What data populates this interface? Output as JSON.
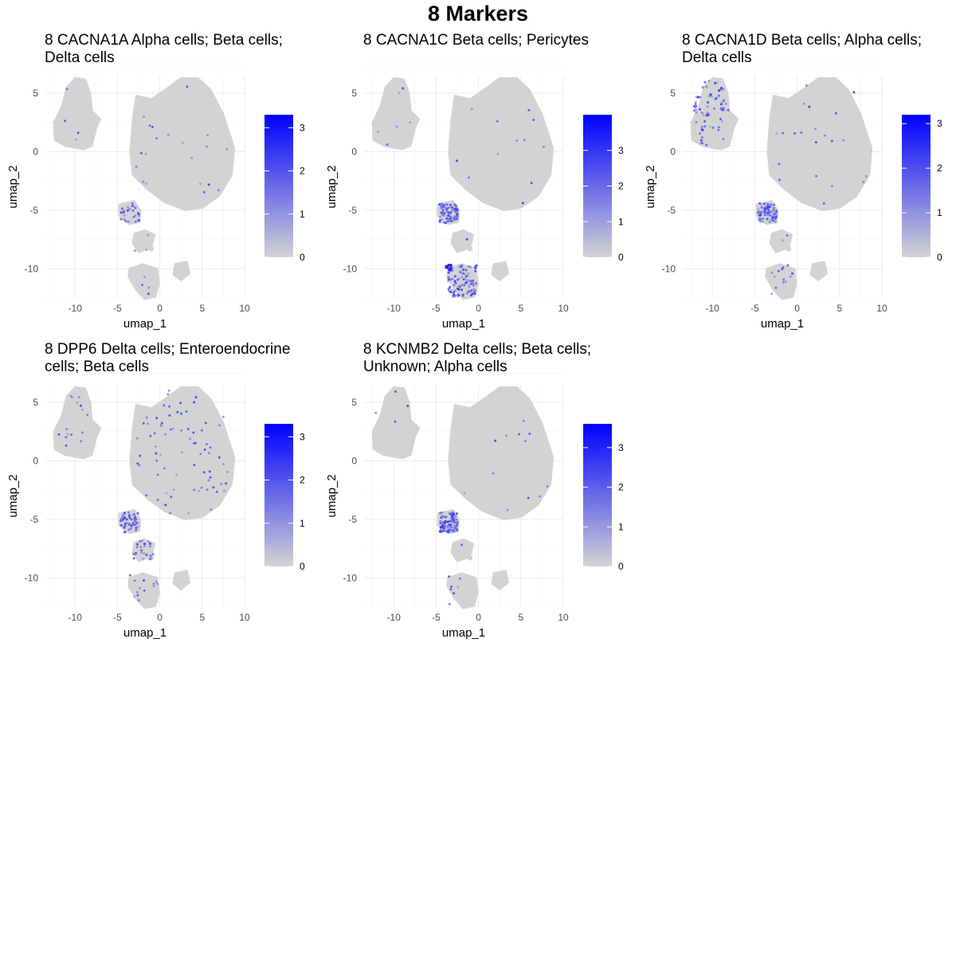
{
  "title": "8 Markers",
  "chart_data": [
    {
      "type": "scatter",
      "title": "8 CACNA1A Alpha cells; Beta cells; Delta cells",
      "xlabel": "umap_1",
      "ylabel": "umap_2",
      "xlim": [
        -13.5,
        10
      ],
      "ylim": [
        -12.5,
        6.5
      ],
      "x_ticks": [
        -10,
        -5,
        0,
        5,
        10
      ],
      "y_ticks": [
        5,
        0,
        -5,
        -10
      ],
      "grid": true,
      "legend": {
        "position": "right",
        "max": 3.3,
        "ticks": [
          3,
          2,
          1,
          0
        ],
        "low_color": "#d3d3d3",
        "high_color": "#0000ff"
      },
      "expression": {
        "alpha": 0.15,
        "top_left_cluster": 0.02,
        "main_cluster": 0.03,
        "delta_cluster": 0.05,
        "small_clusters": 0.0,
        "bottom_cluster": 0.02
      }
    },
    {
      "type": "scatter",
      "title": "8 CACNA1C Beta cells; Pericytes",
      "xlabel": "umap_1",
      "ylabel": "umap_2",
      "xlim": [
        -13.5,
        10
      ],
      "ylim": [
        -12.5,
        6.5
      ],
      "x_ticks": [
        -10,
        -5,
        0,
        5,
        10
      ],
      "y_ticks": [
        5,
        0,
        -5,
        -10
      ],
      "grid": true,
      "legend": {
        "position": "right",
        "max": 4.0,
        "ticks": [
          3,
          2,
          1,
          0
        ],
        "low_color": "#d3d3d3",
        "high_color": "#0000ff"
      },
      "expression": {
        "alpha": 0.45,
        "top_left_cluster": 0.02,
        "main_cluster": 0.02,
        "delta_cluster": 0.02,
        "small_clusters": 0.0,
        "bottom_cluster": 0.45
      }
    },
    {
      "type": "scatter",
      "title": "8 CACNA1D Beta cells; Alpha cells; Delta cells",
      "xlabel": "umap_1",
      "ylabel": "umap_2",
      "xlim": [
        -13.5,
        10
      ],
      "ylim": [
        -12.5,
        6.5
      ],
      "x_ticks": [
        -10,
        -5,
        0,
        5,
        10
      ],
      "y_ticks": [
        5,
        0,
        -5,
        -10
      ],
      "grid": true,
      "legend": {
        "position": "right",
        "max": 3.2,
        "ticks": [
          3,
          2,
          1,
          0
        ],
        "low_color": "#d3d3d3",
        "high_color": "#0000ff"
      },
      "expression": {
        "alpha": 0.45,
        "top_left_cluster": 0.25,
        "main_cluster": 0.03,
        "delta_cluster": 0.03,
        "small_clusters": 0.0,
        "bottom_cluster": 0.06
      }
    },
    {
      "type": "scatter",
      "title": "8 DPP6 Delta cells; Enteroendocrine cells; Beta cells",
      "xlabel": "umap_1",
      "ylabel": "umap_2",
      "xlim": [
        -13.5,
        10
      ],
      "ylim": [
        -12.5,
        6.5
      ],
      "x_ticks": [
        -10,
        -5,
        0,
        5,
        10
      ],
      "y_ticks": [
        5,
        0,
        -5,
        -10
      ],
      "grid": true,
      "legend": {
        "position": "right",
        "max": 3.3,
        "ticks": [
          3,
          2,
          1,
          0
        ],
        "low_color": "#d3d3d3",
        "high_color": "#0000ff"
      },
      "expression": {
        "alpha": 0.3,
        "top_left_cluster": 0.05,
        "main_cluster": 0.12,
        "delta_cluster": 0.4,
        "small_clusters": 0.05,
        "bottom_cluster": 0.06
      }
    },
    {
      "type": "scatter",
      "title": "8 KCNMB2 Delta cells; Beta cells; Unknown; Alpha cells",
      "xlabel": "umap_1",
      "ylabel": "umap_2",
      "xlim": [
        -13.5,
        10
      ],
      "ylim": [
        -12.5,
        6.5
      ],
      "x_ticks": [
        -10,
        -5,
        0,
        5,
        10
      ],
      "y_ticks": [
        5,
        0,
        -5,
        -10
      ],
      "grid": true,
      "legend": {
        "position": "right",
        "max": 3.6,
        "ticks": [
          3,
          2,
          1,
          0
        ],
        "low_color": "#d3d3d3",
        "high_color": "#0000ff"
      },
      "expression": {
        "alpha": 0.55,
        "top_left_cluster": 0.01,
        "main_cluster": 0.02,
        "delta_cluster": 0.02,
        "small_clusters": 0.0,
        "bottom_cluster": 0.03
      }
    }
  ]
}
